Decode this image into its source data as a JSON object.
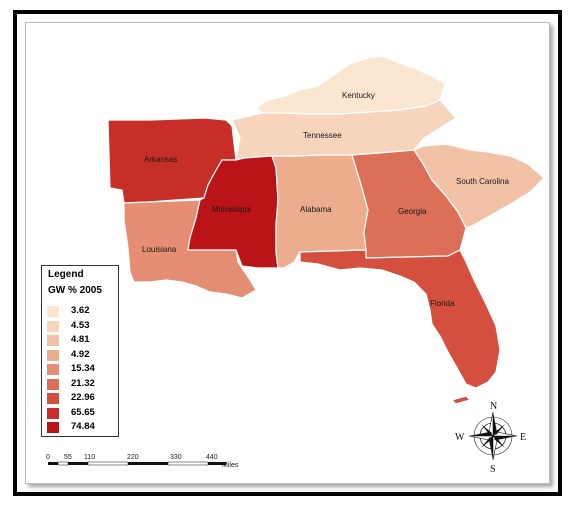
{
  "legend": {
    "title": "Legend",
    "subtitle": "GW % 2005",
    "classes": [
      {
        "value": "3.62",
        "color": "#fbe6d2"
      },
      {
        "value": "4.53",
        "color": "#f7d5bd"
      },
      {
        "value": "4.81",
        "color": "#f2c2a6"
      },
      {
        "value": "4.92",
        "color": "#ecac8e"
      },
      {
        "value": "15.34",
        "color": "#e58e73"
      },
      {
        "value": "21.32",
        "color": "#dc6f58"
      },
      {
        "value": "22.96",
        "color": "#d44f3d"
      },
      {
        "value": "65.65",
        "color": "#c82e28"
      },
      {
        "value": "74.84",
        "color": "#bb1418"
      }
    ]
  },
  "states": {
    "kentucky": {
      "label": "Kentucky",
      "value": "3.62",
      "color": "#fbe6d2"
    },
    "tennessee": {
      "label": "Tennessee",
      "value": "4.53",
      "color": "#f7d5bd"
    },
    "south_carolina": {
      "label": "South Carolina",
      "value": "4.81",
      "color": "#f2c2a6"
    },
    "alabama": {
      "label": "Alabama",
      "value": "4.92",
      "color": "#ecac8e"
    },
    "louisiana": {
      "label": "Louisiana",
      "value": "15.34",
      "color": "#e58e73"
    },
    "georgia": {
      "label": "Georgia",
      "value": "21.32",
      "color": "#dc6f58"
    },
    "florida": {
      "label": "Florida",
      "value": "22.96",
      "color": "#d44f3d"
    },
    "arkansas": {
      "label": "Arkansas",
      "value": "65.65",
      "color": "#c82e28"
    },
    "mississippi": {
      "label": "Mississippi",
      "value": "74.84",
      "color": "#bb1418"
    }
  },
  "scale_bar": {
    "ticks": [
      "0",
      "55",
      "110",
      "220",
      "330",
      "440"
    ],
    "unit": "Miles"
  },
  "compass": {
    "n": "N",
    "s": "S",
    "e": "E",
    "w": "W"
  }
}
